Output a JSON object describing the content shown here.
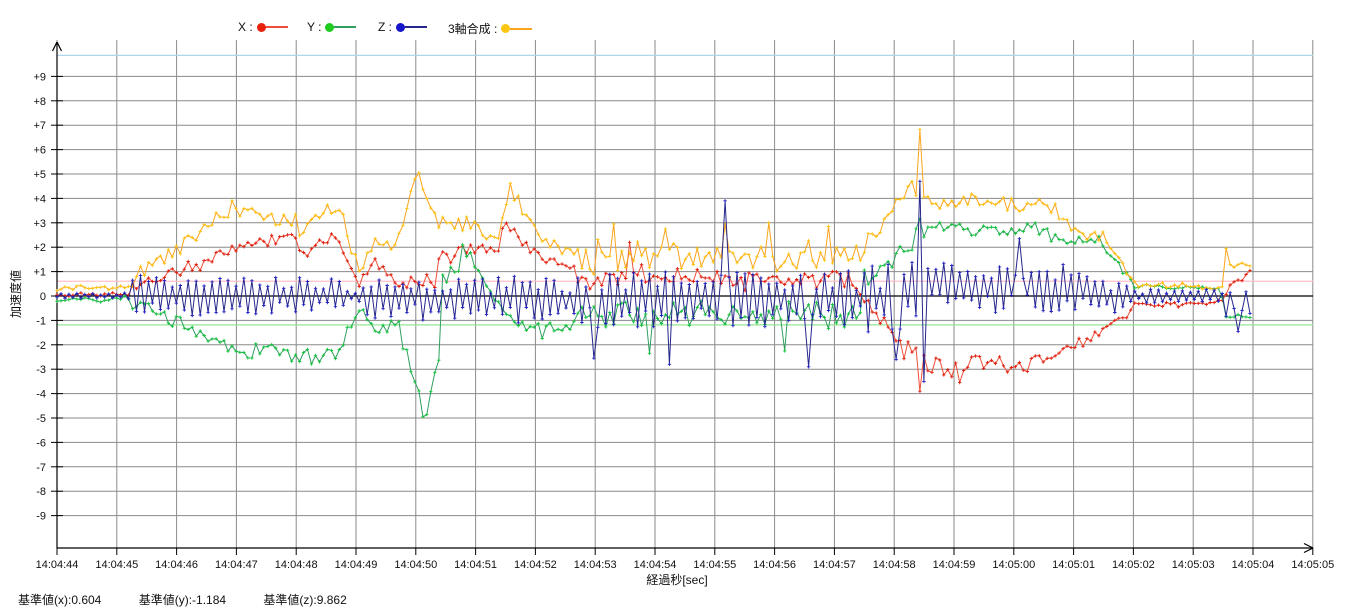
{
  "legend": {
    "items": [
      {
        "label": "X :",
        "dot_color": "#e8200c",
        "line_color": "#ef4f39"
      },
      {
        "label": "Y :",
        "dot_color": "#1ecb1e",
        "line_color": "#2f9e5f"
      },
      {
        "label": "Z :",
        "dot_color": "#1515cc",
        "line_color": "#26268d"
      },
      {
        "label": "3軸合成 :",
        "dot_color": "#fdc613",
        "line_color": "#fca41c"
      }
    ]
  },
  "axes": {
    "y_label": "加速度値",
    "x_label": "経過秒[sec]"
  },
  "footer": {
    "items": [
      "基準値(x):0.604",
      "基準値(y):-1.184",
      "基準値(z):9.862"
    ]
  },
  "colors": {
    "background": "#ffffff",
    "grid": "#8a8a8a",
    "axis": "#000000",
    "zero_line": "#000000",
    "tick_text": "#111111"
  },
  "chart_data": {
    "type": "line",
    "title": "",
    "xlabel": "経過秒[sec]",
    "ylabel": "加速度値",
    "grid": true,
    "legend_position": "top",
    "ylim": [
      -9,
      9
    ],
    "y_tick_labels": [
      "+9",
      "+8",
      "+7",
      "+6",
      "+5",
      "+4",
      "+3",
      "+2",
      "+1",
      "0",
      "-1",
      "-2",
      "-3",
      "-4",
      "-5",
      "-6",
      "-7",
      "-8",
      "-9"
    ],
    "x_tick_labels": [
      "14:04:44",
      "14:04:45",
      "14:04:46",
      "14:04:47",
      "14:04:48",
      "14:04:49",
      "14:04:50",
      "14:04:51",
      "14:04:52",
      "14:04:53",
      "14:04:54",
      "14:04:55",
      "14:04:56",
      "14:04:57",
      "14:04:58",
      "14:04:59",
      "14:05:00",
      "14:05:01",
      "14:05:02",
      "14:05:03",
      "14:05:04",
      "14:05:05"
    ],
    "baselines": [
      {
        "name": "基準値(x)",
        "value": 0.604,
        "color": "#ffbfca"
      },
      {
        "name": "基準値(y)",
        "value": -1.184,
        "color": "#96e696"
      },
      {
        "name": "基準値(z)",
        "value": 9.862,
        "color": "#aed6ea"
      }
    ],
    "sample_dt_sec": 0.0665,
    "t_end_sec": 19.98,
    "noise_seed": 1234567,
    "series": [
      {
        "name": "X",
        "line_color": "#ef4f39",
        "marker_color": "#dd1c0e",
        "alternate": false,
        "segments": [
          [
            0,
            1.2,
            0.07,
            0.07,
            0.1
          ],
          [
            1.2,
            3.15,
            0.25,
            2.05,
            0.3
          ],
          [
            3.15,
            4.0,
            2.05,
            2.45,
            0.35
          ],
          [
            4.0,
            4.25,
            1.85,
            1.65,
            0.28
          ],
          [
            4.25,
            4.7,
            1.95,
            2.55,
            0.3
          ],
          [
            4.7,
            5.05,
            2.3,
            0.5,
            0.2
          ],
          [
            5.05,
            5.35,
            0.5,
            1.45,
            0.25
          ],
          [
            5.35,
            5.75,
            1.3,
            0.35,
            0.22
          ],
          [
            5.75,
            6.35,
            0.55,
            0.5,
            0.33
          ],
          [
            6.35,
            7.1,
            1.5,
            2.15,
            0.38
          ],
          [
            7.1,
            7.4,
            2.0,
            1.9,
            0.3
          ],
          [
            7.4,
            7.56,
            2.3,
            3.25,
            0.3
          ],
          [
            7.56,
            8.15,
            2.9,
            1.4,
            0.35
          ],
          [
            8.15,
            8.7,
            1.4,
            1.0,
            0.38
          ],
          [
            8.7,
            13.35,
            0.75,
            0.7,
            0.5
          ],
          [
            13.35,
            14.15,
            0.3,
            -2.0,
            0.45
          ],
          [
            14.15,
            14.55,
            -2.2,
            -2.6,
            0.6
          ],
          [
            14.55,
            16.35,
            -2.9,
            -2.85,
            0.42
          ],
          [
            16.35,
            17.15,
            -2.6,
            -2.0,
            0.3
          ],
          [
            17.15,
            18.02,
            -2.0,
            -0.5,
            0.25
          ],
          [
            18.02,
            19.45,
            -0.42,
            -0.25,
            0.12
          ],
          [
            19.45,
            19.62,
            -0.2,
            0.45,
            0.25
          ],
          [
            19.62,
            19.99,
            0.5,
            0.85,
            0.22
          ]
        ],
        "spikes": [
          [
            9.6,
            2.2
          ],
          [
            14.44,
            -3.9
          ],
          [
            15.1,
            -3.55
          ],
          [
            19.92,
            1.05
          ]
        ]
      },
      {
        "name": "Y",
        "line_color": "#2f9e5f",
        "marker_color": "#12c53a",
        "alternate": false,
        "segments": [
          [
            0,
            1.2,
            -0.12,
            -0.12,
            0.14
          ],
          [
            1.2,
            3.05,
            -0.3,
            -2.15,
            0.3
          ],
          [
            3.05,
            4.35,
            -2.15,
            -2.55,
            0.4
          ],
          [
            4.35,
            4.85,
            -2.55,
            -2.0,
            0.33
          ],
          [
            4.85,
            5.08,
            -1.5,
            -0.55,
            0.2
          ],
          [
            5.08,
            5.38,
            -0.55,
            -1.45,
            0.25
          ],
          [
            5.38,
            5.72,
            -1.45,
            -1.05,
            0.25
          ],
          [
            5.72,
            5.92,
            -1.35,
            -2.9,
            0.3
          ],
          [
            5.92,
            6.18,
            -2.9,
            -4.75,
            0.28
          ],
          [
            6.18,
            6.45,
            -4.75,
            -1.9,
            0.33
          ],
          [
            6.45,
            6.95,
            0.4,
            1.75,
            0.45
          ],
          [
            6.95,
            7.4,
            1.5,
            -0.4,
            0.4
          ],
          [
            7.4,
            8.1,
            -0.75,
            -1.45,
            0.38
          ],
          [
            8.1,
            8.7,
            -1.45,
            -1.0,
            0.38
          ],
          [
            8.7,
            13.45,
            -0.8,
            -0.75,
            0.55
          ],
          [
            13.45,
            14.35,
            0.6,
            2.35,
            0.48
          ],
          [
            14.35,
            14.65,
            2.55,
            2.75,
            0.3
          ],
          [
            14.65,
            16.6,
            2.75,
            2.65,
            0.33
          ],
          [
            16.6,
            17.0,
            2.45,
            2.1,
            0.25
          ],
          [
            17.0,
            17.45,
            2.2,
            2.25,
            0.22
          ],
          [
            17.45,
            18.02,
            2.1,
            0.5,
            0.18
          ],
          [
            18.02,
            19.45,
            0.4,
            0.28,
            0.12
          ],
          [
            19.45,
            19.6,
            0.1,
            -1.2,
            0.25
          ],
          [
            19.6,
            19.99,
            -0.85,
            -0.8,
            0.18
          ]
        ],
        "spikes": [
          [
            6.12,
            -4.95
          ],
          [
            6.8,
            2.1
          ],
          [
            9.9,
            -2.35
          ],
          [
            12.2,
            -2.25
          ],
          [
            14.46,
            3.15
          ]
        ]
      },
      {
        "name": "Z",
        "line_color": "#26268d",
        "marker_color": "#2121c0",
        "alternate": true,
        "segments": [
          [
            0,
            1.2,
            0,
            0,
            0.13
          ],
          [
            1.2,
            1.5,
            0,
            0,
            1.15
          ],
          [
            1.5,
            4.9,
            0,
            -0.05,
            0.8
          ],
          [
            4.9,
            5.1,
            0,
            0,
            0.35
          ],
          [
            5.1,
            6.5,
            -0.1,
            -0.1,
            0.9
          ],
          [
            6.5,
            8.6,
            -0.15,
            -0.2,
            1.05
          ],
          [
            8.6,
            13.5,
            -0.15,
            -0.1,
            1.2
          ],
          [
            13.5,
            14.6,
            -0.1,
            0,
            1.45
          ],
          [
            14.6,
            17.3,
            0.35,
            0.3,
            1.0
          ],
          [
            17.3,
            17.95,
            0.05,
            0,
            0.7
          ],
          [
            17.95,
            19.45,
            0,
            0,
            0.28
          ],
          [
            19.45,
            19.99,
            -0.2,
            -0.2,
            0.65
          ]
        ],
        "spikes": [
          [
            9.0,
            -2.55
          ],
          [
            10.25,
            -2.8
          ],
          [
            11.2,
            3.9
          ],
          [
            12.55,
            -2.9
          ],
          [
            14.0,
            -2.6
          ],
          [
            14.42,
            4.7
          ],
          [
            14.5,
            -3.5
          ],
          [
            16.1,
            2.35
          ],
          [
            19.78,
            -1.45
          ]
        ]
      },
      {
        "name": "3軸合成",
        "line_color": "#fca41c",
        "marker_color": "#fdc40e",
        "alternate": false,
        "segments": [
          [
            0,
            1.2,
            0.32,
            0.32,
            0.13
          ],
          [
            1.2,
            2.95,
            0.5,
            3.6,
            0.38
          ],
          [
            2.95,
            4.05,
            3.6,
            2.9,
            0.45
          ],
          [
            4.05,
            4.5,
            2.6,
            3.7,
            0.33
          ],
          [
            4.5,
            4.85,
            3.7,
            3.0,
            0.3
          ],
          [
            4.85,
            5.08,
            2.4,
            0.95,
            0.22
          ],
          [
            5.08,
            5.35,
            0.95,
            2.35,
            0.28
          ],
          [
            5.35,
            5.62,
            2.35,
            1.75,
            0.25
          ],
          [
            5.62,
            6.02,
            1.9,
            4.8,
            0.3
          ],
          [
            6.02,
            6.4,
            4.8,
            3.0,
            0.3
          ],
          [
            6.4,
            7.05,
            3.0,
            2.85,
            0.38
          ],
          [
            7.05,
            7.4,
            2.7,
            2.35,
            0.33
          ],
          [
            7.4,
            7.58,
            2.7,
            4.35,
            0.28
          ],
          [
            7.58,
            8.15,
            4.1,
            2.2,
            0.4
          ],
          [
            8.15,
            8.7,
            2.2,
            1.75,
            0.42
          ],
          [
            8.7,
            13.45,
            1.55,
            1.55,
            0.72
          ],
          [
            13.45,
            14.22,
            1.9,
            4.2,
            0.5
          ],
          [
            14.22,
            14.58,
            4.2,
            3.9,
            0.55
          ],
          [
            14.58,
            16.7,
            3.95,
            3.75,
            0.42
          ],
          [
            16.7,
            17.05,
            3.4,
            2.6,
            0.28
          ],
          [
            17.05,
            17.5,
            2.6,
            2.45,
            0.22
          ],
          [
            17.5,
            18.02,
            2.4,
            0.6,
            0.18
          ],
          [
            18.02,
            19.45,
            0.5,
            0.35,
            0.12
          ],
          [
            19.45,
            19.6,
            0.4,
            1.55,
            0.3
          ],
          [
            19.6,
            19.99,
            1.25,
            1.3,
            0.22
          ]
        ],
        "spikes": [
          [
            6.05,
            5.05
          ],
          [
            7.55,
            4.62
          ],
          [
            9.3,
            2.95
          ],
          [
            10.15,
            2.75
          ],
          [
            11.2,
            2.95
          ],
          [
            11.9,
            3.0
          ],
          [
            12.9,
            2.85
          ],
          [
            14.28,
            4.7
          ],
          [
            14.4,
            6.82
          ],
          [
            19.58,
            1.95
          ]
        ]
      }
    ]
  }
}
